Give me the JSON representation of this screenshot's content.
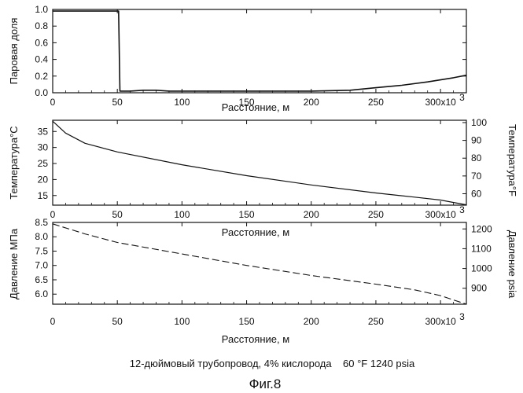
{
  "caption": "12-дюймовый трубопровод, 4% кислорода    60 °F 1240 psia",
  "figure_label": "Фиг.8",
  "chart_data": [
    {
      "type": "line",
      "xlabel": "Расстояние, м",
      "ylabel": "Паровая доля",
      "xlim": [
        0,
        320000
      ],
      "ylim": [
        0,
        1.0
      ],
      "x_ticks": [
        "0",
        "50",
        "100",
        "150",
        "200",
        "250",
        "300x10"
      ],
      "x_ticks_exponent": "3",
      "y_ticks": [
        "0.0",
        "0.2",
        "0.4",
        "0.6",
        "0.8",
        "1.0"
      ],
      "y_tick_values": [
        0,
        0.2,
        0.4,
        0.6,
        0.8,
        1.0
      ],
      "series": [
        {
          "x": [
            0,
            51000,
            52000,
            60000,
            70000,
            80000,
            90000,
            100000,
            150000,
            200000,
            230000,
            250000,
            270000,
            290000,
            310000,
            320000
          ],
          "y": [
            0.98,
            0.98,
            0.02,
            0.02,
            0.03,
            0.03,
            0.02,
            0.02,
            0.02,
            0.02,
            0.03,
            0.06,
            0.09,
            0.13,
            0.18,
            0.21
          ]
        }
      ]
    },
    {
      "type": "line",
      "xlabel": "Расстояние, м",
      "ylabel": "Температура°C",
      "ylabel_right": "Температура°F",
      "xlim": [
        0,
        320000
      ],
      "ylim": [
        12,
        38.5
      ],
      "ylim_right": [
        53.6,
        101.3
      ],
      "x_ticks": [
        "0",
        "50",
        "100",
        "150",
        "200",
        "250",
        "300x10"
      ],
      "x_ticks_exponent": "3",
      "y_ticks": [
        "15",
        "20",
        "25",
        "30",
        "35"
      ],
      "y_tick_values": [
        15,
        20,
        25,
        30,
        35
      ],
      "y_ticks_right": [
        "60",
        "70",
        "80",
        "90",
        "100"
      ],
      "y_tick_values_right": [
        60,
        70,
        80,
        90,
        100
      ],
      "series": [
        {
          "x": [
            0,
            10000,
            25000,
            50000,
            100000,
            150000,
            200000,
            250000,
            280000,
            300000,
            320000
          ],
          "y": [
            38.2,
            34.5,
            31.3,
            28.6,
            24.6,
            21.2,
            18.3,
            15.8,
            14.5,
            13.6,
            12.1
          ]
        }
      ]
    },
    {
      "type": "line",
      "xlabel": "Расстояние, м",
      "ylabel": "Давление МПа",
      "ylabel_right": "Давление psia",
      "xlim": [
        0,
        320000
      ],
      "ylim": [
        5.65,
        8.5
      ],
      "ylim_right": [
        819.5,
        1232.8
      ],
      "x_ticks": [
        "0",
        "50",
        "100",
        "150",
        "200",
        "250",
        "300x10"
      ],
      "x_ticks_exponent": "3",
      "y_ticks": [
        "6.0",
        "6.5",
        "7.0",
        "7.5",
        "8.0",
        "8.5"
      ],
      "y_tick_values": [
        6.0,
        6.5,
        7.0,
        7.5,
        8.0,
        8.5
      ],
      "y_ticks_right": [
        "900",
        "1000",
        "1100",
        "1200"
      ],
      "y_tick_values_right": [
        900,
        1000,
        1100,
        1200
      ],
      "series": [
        {
          "x": [
            0,
            25000,
            50000,
            100000,
            150000,
            200000,
            250000,
            280000,
            300000,
            320000
          ],
          "y": [
            8.45,
            8.1,
            7.8,
            7.4,
            7.0,
            6.65,
            6.35,
            6.15,
            5.95,
            5.65
          ]
        }
      ]
    }
  ]
}
